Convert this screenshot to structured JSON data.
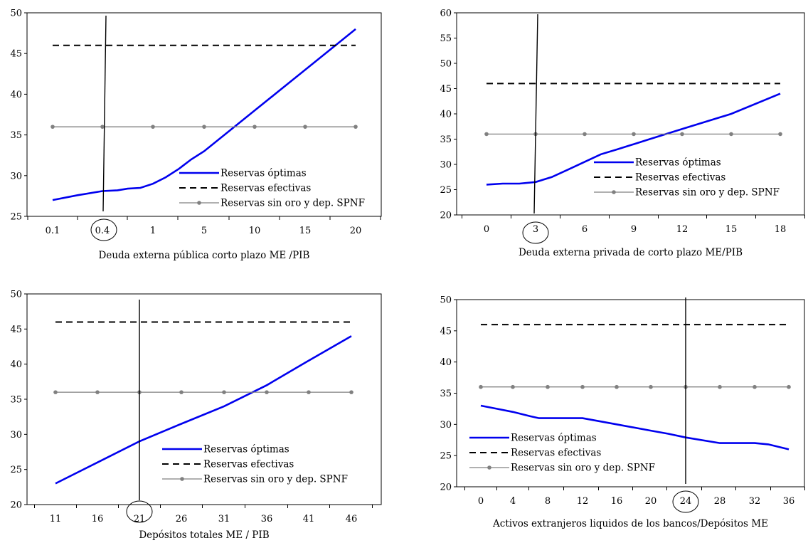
{
  "chart_data": [
    {
      "type": "line",
      "xlabel": "Deuda externa pública corto plazo ME /PIB",
      "x_categories": [
        "0.1",
        "0.4",
        "1",
        "5",
        "10",
        "15",
        "20"
      ],
      "highlighted_x": "0.4",
      "ylim": [
        25,
        50
      ],
      "yticks": [
        25,
        30,
        35,
        40,
        45,
        50
      ],
      "legend_position": "bottom-right",
      "series": [
        {
          "name": "Reservas óptimas",
          "style": "solid",
          "color": "#0000ee",
          "points": [
            [
              0,
              27.0
            ],
            [
              0.5,
              27.6
            ],
            [
              1.0,
              28.1
            ],
            [
              1.3,
              28.2
            ],
            [
              1.5,
              28.4
            ],
            [
              1.75,
              28.5
            ],
            [
              2.0,
              29.0
            ],
            [
              2.25,
              29.8
            ],
            [
              2.5,
              30.8
            ],
            [
              2.75,
              32.0
            ],
            [
              3.0,
              33.0
            ],
            [
              3.5,
              35.5
            ],
            [
              4.0,
              38.0
            ],
            [
              5.0,
              43.0
            ],
            [
              6.0,
              48.0
            ]
          ]
        },
        {
          "name": "Reservas efectivas",
          "style": "dashed",
          "color": "#000000",
          "points": [
            [
              0,
              46
            ],
            [
              6,
              46
            ]
          ]
        },
        {
          "name": "Reservas sin oro y dep. SPNF",
          "style": "solid-markers",
          "color": "#808080",
          "points": [
            [
              0,
              36
            ],
            [
              1,
              36
            ],
            [
              2,
              36
            ],
            [
              3,
              36
            ],
            [
              4,
              36
            ],
            [
              5,
              36
            ],
            [
              6,
              36
            ]
          ]
        }
      ]
    },
    {
      "type": "line",
      "xlabel": "Deuda externa privada de corto plazo ME/PIB",
      "x_categories": [
        "0",
        "3",
        "6",
        "9",
        "12",
        "15",
        "18"
      ],
      "highlighted_x": "3",
      "ylim": [
        20,
        60
      ],
      "yticks": [
        20,
        25,
        30,
        35,
        40,
        45,
        50,
        55,
        60
      ],
      "legend_position": "bottom-right",
      "series": [
        {
          "name": "Reservas óptimas",
          "style": "solid",
          "color": "#0000ee",
          "points": [
            [
              0,
              26.0
            ],
            [
              0.33,
              26.2
            ],
            [
              0.67,
              26.2
            ],
            [
              1.0,
              26.5
            ],
            [
              1.33,
              27.5
            ],
            [
              1.67,
              29.0
            ],
            [
              2.0,
              30.5
            ],
            [
              2.33,
              32.0
            ],
            [
              2.67,
              33.0
            ],
            [
              3.0,
              34.0
            ],
            [
              3.33,
              35.0
            ],
            [
              4.0,
              37.0
            ],
            [
              5.0,
              40.0
            ],
            [
              6.0,
              44.0
            ]
          ]
        },
        {
          "name": "Reservas efectivas",
          "style": "dashed",
          "color": "#000000",
          "points": [
            [
              0,
              46
            ],
            [
              6,
              46
            ]
          ]
        },
        {
          "name": "Reservas sin oro y dep. SPNF",
          "style": "solid-markers",
          "color": "#808080",
          "points": [
            [
              0,
              36
            ],
            [
              1,
              36
            ],
            [
              2,
              36
            ],
            [
              3,
              36
            ],
            [
              4,
              36
            ],
            [
              5,
              36
            ],
            [
              6,
              36
            ]
          ]
        }
      ]
    },
    {
      "type": "line",
      "xlabel": "Depósitos totales ME / PIB",
      "x_categories": [
        "11",
        "16",
        "21",
        "26",
        "31",
        "36",
        "41",
        "46"
      ],
      "highlighted_x": "21",
      "ylim": [
        20,
        50
      ],
      "yticks": [
        20,
        25,
        30,
        35,
        40,
        45,
        50
      ],
      "legend_position": "bottom-right",
      "series": [
        {
          "name": "Reservas óptimas",
          "style": "solid",
          "color": "#0000ee",
          "points": [
            [
              0,
              23.0
            ],
            [
              1,
              26.0
            ],
            [
              2,
              29.0
            ],
            [
              3,
              31.5
            ],
            [
              4,
              34.0
            ],
            [
              5,
              37.0
            ],
            [
              6,
              40.5
            ],
            [
              7,
              44.0
            ]
          ]
        },
        {
          "name": "Reservas efectivas",
          "style": "dashed",
          "color": "#000000",
          "points": [
            [
              0,
              46
            ],
            [
              7,
              46
            ]
          ]
        },
        {
          "name": "Reservas sin oro y dep. SPNF",
          "style": "solid-markers",
          "color": "#808080",
          "points": [
            [
              0,
              36
            ],
            [
              1,
              36
            ],
            [
              2,
              36
            ],
            [
              3,
              36
            ],
            [
              4,
              36
            ],
            [
              5,
              36
            ],
            [
              6,
              36
            ],
            [
              7,
              36
            ]
          ]
        }
      ]
    },
    {
      "type": "line",
      "xlabel": "Activos extranjeros liquidos de los bancos/Depósitos ME",
      "x_categories": [
        "0",
        "4",
        "8",
        "12",
        "16",
        "20",
        "24",
        "28",
        "32",
        "36"
      ],
      "highlighted_x": "24",
      "ylim": [
        20,
        50
      ],
      "yticks": [
        20,
        25,
        30,
        35,
        40,
        45,
        50
      ],
      "legend_position": "bottom-left",
      "series": [
        {
          "name": "Reservas óptimas",
          "style": "solid",
          "color": "#0000ee",
          "points": [
            [
              0,
              33.0
            ],
            [
              0.5,
              32.5
            ],
            [
              1,
              32.0
            ],
            [
              1.5,
              31.3
            ],
            [
              1.75,
              31.0
            ],
            [
              2,
              31.0
            ],
            [
              3,
              31.0
            ],
            [
              4,
              30.0
            ],
            [
              5,
              29.0
            ],
            [
              5.5,
              28.5
            ],
            [
              6,
              27.9
            ],
            [
              7,
              27.0
            ],
            [
              8,
              27.0
            ],
            [
              8.4,
              26.8
            ],
            [
              9,
              26.0
            ]
          ]
        },
        {
          "name": "Reservas efectivas",
          "style": "dashed",
          "color": "#000000",
          "points": [
            [
              0,
              46
            ],
            [
              9,
              46
            ]
          ]
        },
        {
          "name": "Reservas sin oro y dep. SPNF",
          "style": "solid-markers",
          "color": "#808080",
          "points": [
            [
              0,
              36
            ],
            [
              1,
              36
            ],
            [
              2,
              36
            ],
            [
              3,
              36
            ],
            [
              4,
              36
            ],
            [
              5,
              36
            ],
            [
              6,
              36
            ],
            [
              7,
              36
            ],
            [
              8,
              36
            ],
            [
              9,
              36
            ]
          ]
        }
      ]
    }
  ]
}
